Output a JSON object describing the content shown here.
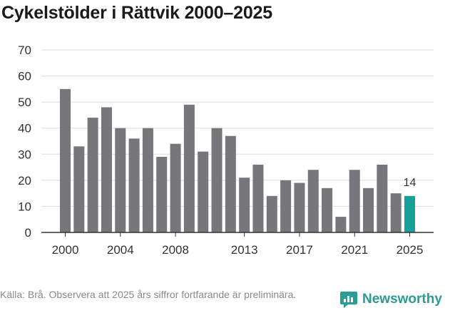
{
  "title": "Cykelstölder i Rättvik 2000–2025",
  "chart_data": {
    "type": "bar",
    "title": "Cykelstölder i Rättvik 2000–2025",
    "categories": [
      2000,
      2001,
      2002,
      2003,
      2004,
      2005,
      2006,
      2007,
      2008,
      2009,
      2010,
      2011,
      2012,
      2013,
      2014,
      2015,
      2016,
      2017,
      2018,
      2019,
      2020,
      2021,
      2022,
      2023,
      2024,
      2025
    ],
    "values": [
      55,
      33,
      44,
      48,
      40,
      36,
      40,
      29,
      34,
      49,
      31,
      40,
      37,
      21,
      26,
      14,
      20,
      19,
      24,
      17,
      6,
      24,
      17,
      26,
      15,
      14
    ],
    "xticks": [
      "2000",
      "2004",
      "2008",
      "2013",
      "2017",
      "2021",
      "2025"
    ],
    "yticks": [
      "0",
      "10",
      "20",
      "30",
      "40",
      "50",
      "60",
      "70"
    ],
    "ylim": [
      0,
      70
    ],
    "highlight_label": "14",
    "xlabel": "",
    "ylabel": "",
    "grid": true
  },
  "colors": {
    "bar": "#77767b",
    "highlight": "#18a198",
    "grid": "#dddddd",
    "brand": "#2b9c93"
  },
  "footer": {
    "source": "Källa: Brå. Observera att 2025 års siffror fortfarande är preliminära.",
    "brand": "Newsworthy",
    "brand_icon": "newsworthy-logo-icon"
  }
}
